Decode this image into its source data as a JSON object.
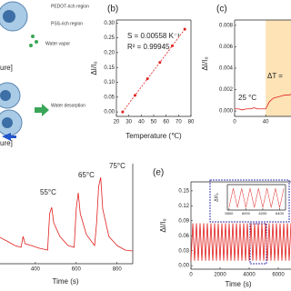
{
  "schematic": {
    "labels": [
      "PEDOT-rich region",
      "PSS-rich region",
      "Water vapor",
      "ure]",
      "Water desorption",
      "ure]"
    ]
  },
  "chart_data": [
    {
      "type": "scatter",
      "panel": "(b)",
      "x": [
        25,
        35,
        45,
        55,
        65,
        75
      ],
      "values": [
        0.0,
        0.056,
        0.112,
        0.167,
        0.223,
        0.279
      ],
      "color": "#e0201e",
      "xlabel": "Temperature (℃)",
      "ylabel": "ΔI/I₀",
      "annotations": [
        "S = 0.00558 K⁻¹",
        "R² = 0.99945"
      ],
      "xlim": [
        20,
        80
      ],
      "xticks": [
        20,
        30,
        40,
        50,
        60,
        70,
        80
      ],
      "ylim": [
        -0.015,
        0.31
      ],
      "yticks": [
        {
          "value": 0,
          "label": "0.00"
        },
        {
          "value": 0.05,
          "label": "0.05"
        },
        {
          "value": 0.1,
          "label": "0.10"
        },
        {
          "value": 0.15,
          "label": "0.15"
        },
        {
          "value": 0.2,
          "label": "0.20"
        },
        {
          "value": 0.25,
          "label": "0.25"
        },
        {
          "value": 0.3,
          "label": "0.30"
        }
      ]
    },
    {
      "type": "line",
      "panel": "(c)",
      "x": [
        0,
        5,
        10,
        15,
        20,
        25,
        30,
        35,
        40,
        45,
        50,
        55,
        60,
        65,
        70,
        75
      ],
      "values": [
        0.0002,
        0.0002,
        0.0001,
        0.0002,
        0.0002,
        0.0003,
        0.0002,
        0.0002,
        0.0002,
        0.0009,
        0.0012,
        0.0013,
        0.0014,
        0.0015,
        0.0015,
        0.0016
      ],
      "color": "#e0201e",
      "ylabel": "ΔI/I₀",
      "annotations": [
        "25 °C",
        "ΔT ="
      ],
      "highlight_x": [
        40,
        75
      ],
      "highlight_color": "#fde3b6",
      "xlim": [
        0,
        75
      ],
      "xticks": [
        0,
        40
      ],
      "ylim": [
        -0.0005,
        0.0085
      ],
      "yticks": [
        {
          "value": 0,
          "label": "0.000"
        },
        {
          "value": 0.002,
          "label": "0.002"
        },
        {
          "value": 0.004,
          "label": "0.004"
        },
        {
          "value": 0.006,
          "label": "0.006"
        },
        {
          "value": 0.008,
          "label": "0.008"
        }
      ]
    },
    {
      "type": "line",
      "panel": null,
      "x": [
        218,
        260,
        300,
        330,
        340,
        350,
        380,
        420,
        460,
        470,
        480,
        490,
        520,
        560,
        590,
        600,
        610,
        620,
        650,
        690,
        700,
        710,
        720,
        730,
        760,
        800,
        840,
        877
      ],
      "values": [
        0.3,
        0.25,
        0.2,
        0.18,
        0.3,
        0.22,
        0.2,
        0.17,
        0.15,
        0.55,
        0.62,
        0.45,
        0.3,
        0.2,
        0.18,
        0.6,
        0.78,
        0.55,
        0.32,
        0.2,
        0.45,
        0.85,
        0.95,
        0.6,
        0.3,
        0.2,
        0.15,
        0.14
      ],
      "color": "#e0201e",
      "xlabel": "Time (s)",
      "annotations": [
        "55°C",
        "65°C",
        "75°C"
      ],
      "xlim": [
        218,
        877
      ],
      "xticks": [
        400,
        600,
        800
      ],
      "ylim": [
        0,
        1.1
      ]
    },
    {
      "type": "line",
      "panel": "(e)",
      "x": [
        0,
        125,
        250,
        375,
        500,
        625,
        750,
        875,
        1000,
        1125,
        1250,
        1375,
        1500,
        1625,
        1750,
        1875,
        2000,
        2125,
        2250,
        2375,
        2500,
        2625,
        2750,
        2875,
        3000,
        3125,
        3250,
        3375,
        3500,
        3625,
        3750,
        3875,
        4000,
        4125,
        4250,
        4375,
        4500,
        4625,
        4750,
        4875,
        5000,
        5125,
        5250,
        5375,
        5500,
        5625,
        5750,
        5875,
        6000,
        6125,
        6250,
        6375,
        6500,
        6625,
        6750,
        6875,
        7000
      ],
      "values": [
        0.01,
        0.085,
        0.01,
        0.085,
        0.01,
        0.085,
        0.01,
        0.085,
        0.01,
        0.085,
        0.01,
        0.085,
        0.01,
        0.085,
        0.01,
        0.085,
        0.01,
        0.085,
        0.01,
        0.085,
        0.01,
        0.085,
        0.01,
        0.085,
        0.01,
        0.085,
        0.01,
        0.085,
        0.01,
        0.085,
        0.01,
        0.085,
        0.01,
        0.085,
        0.01,
        0.085,
        0.01,
        0.085,
        0.01,
        0.085,
        0.01,
        0.085,
        0.01,
        0.085,
        0.01,
        0.085,
        0.01,
        0.085,
        0.01,
        0.085,
        0.01,
        0.085,
        0.01,
        0.085,
        0.01,
        0.085,
        0.01
      ],
      "color": "#e0201e",
      "xlabel": "Time (s)",
      "ylabel": "ΔI/I₀",
      "xlim": [
        0,
        7000
      ],
      "xticks": [
        0,
        2000,
        4000,
        6000
      ],
      "ylim": [
        -0.007,
        0.168
      ],
      "yticks": [
        {
          "value": 0,
          "label": "0.00"
        },
        {
          "value": 0.03,
          "label": "0.03"
        },
        {
          "value": 0.06,
          "label": "0.06"
        },
        {
          "value": 0.09,
          "label": "0.09"
        },
        {
          "value": 0.12,
          "label": "0.12"
        },
        {
          "value": 0.15,
          "label": "0.15"
        }
      ]
    },
    {
      "type": "line",
      "panel": null,
      "ylabel": "ΔI/I₀",
      "x": [
        5800,
        5850,
        5900,
        5950,
        6000,
        6050,
        6100,
        6150,
        6200,
        6250,
        6300,
        6350,
        6400,
        6450
      ],
      "values": [
        0.01,
        0.085,
        0.01,
        0.085,
        0.01,
        0.085,
        0.01,
        0.085,
        0.01,
        0.085,
        0.01,
        0.085,
        0.01,
        0.085
      ],
      "color": "#e0201e",
      "xlim": [
        5780,
        6470
      ],
      "xticks": [
        5800,
        6000,
        6200,
        6400
      ],
      "ylim": [
        0,
        0.1
      ]
    }
  ]
}
